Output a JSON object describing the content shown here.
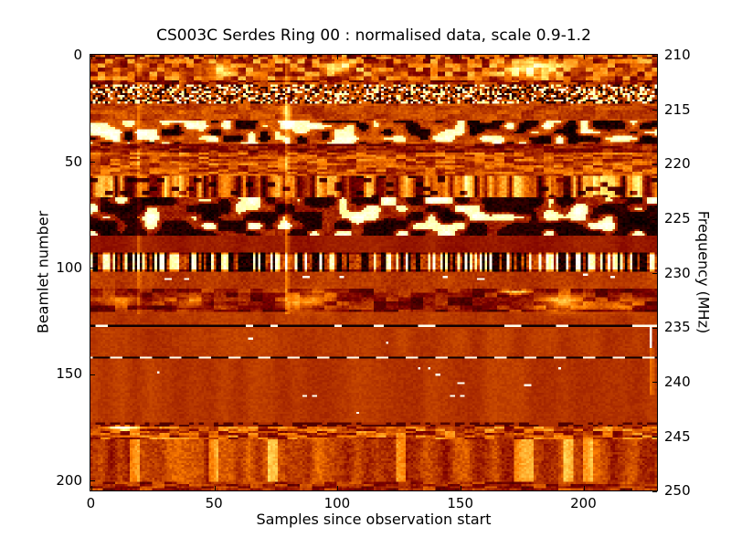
{
  "figure": {
    "background": "#ffffff",
    "frame_color": "#000000",
    "text_color": "#000000"
  },
  "chart_data": {
    "type": "heatmap",
    "title": "CS003C Serdes Ring 00 : normalised data, scale 0.9-1.2",
    "xlabel": "Samples since observation start",
    "ylabel_left": "Beamlet number",
    "ylabel_right": "Frequency (MHz)",
    "scale": [
      0.9,
      1.2
    ],
    "x_range": [
      0,
      230
    ],
    "y_range": [
      0,
      205
    ],
    "freq_range": [
      210,
      250
    ],
    "x_ticks": [
      0,
      50,
      100,
      150,
      200
    ],
    "y_ticks_left": [
      0,
      50,
      100,
      150,
      200
    ],
    "y_ticks_right": [
      210,
      215,
      220,
      225,
      230,
      235,
      240,
      245,
      250
    ],
    "grid": {
      "cols": 230,
      "rows": 205
    },
    "colormap": "afmhot",
    "colormap_stops": [
      "#000000",
      "#8a1e00",
      "#b53a00",
      "#ff8c00",
      "#ffd24d",
      "#ffffff"
    ],
    "legend": "none",
    "bands": [
      {
        "b0": 0,
        "b1": 2,
        "t": "mottle",
        "base": 0.34,
        "amp": 0.25,
        "cw": 2,
        "ch": 1,
        "seed": 11
      },
      {
        "b0": 2,
        "b1": 12,
        "t": "mottle",
        "base": 0.42,
        "amp": 0.2,
        "cw": 3,
        "ch": 2,
        "seed": 12
      },
      {
        "b0": 12,
        "b1": 14,
        "t": "mottle",
        "base": 0.3,
        "amp": 0.15,
        "cw": 3,
        "ch": 1,
        "seed": 13
      },
      {
        "b0": 14,
        "b1": 23,
        "t": "speckle",
        "base": 0.4,
        "pD": 0.3,
        "pB": 0.28,
        "seed": 14
      },
      {
        "b0": 23,
        "b1": 31,
        "t": "mottle",
        "base": 0.38,
        "amp": 0.06,
        "cw": 5,
        "ch": 2,
        "seed": 15
      },
      {
        "b0": 31,
        "b1": 42,
        "t": "blobs",
        "base": 0.38,
        "pL": 0.33,
        "pH": 0.3,
        "cw": 5,
        "ch": 3,
        "seed": 16
      },
      {
        "b0": 42,
        "b1": 46,
        "t": "mottle",
        "base": 0.28,
        "amp": 0.1,
        "cw": 4,
        "ch": 1,
        "seed": 17
      },
      {
        "b0": 46,
        "b1": 57,
        "t": "mottle",
        "base": 0.4,
        "amp": 0.14,
        "cw": 4,
        "ch": 1,
        "seed": 18
      },
      {
        "b0": 57,
        "b1": 67,
        "t": "vstripes",
        "base": 0.4,
        "amp": 0.3,
        "cw": 2,
        "pD": 0.12,
        "pB": 0.15,
        "seed": 19
      },
      {
        "b0": 67,
        "b1": 85,
        "t": "blobs",
        "base": 0.3,
        "pL": 0.45,
        "pH": 0.33,
        "cw": 6,
        "ch": 4,
        "seed": 20
      },
      {
        "b0": 85,
        "b1": 93,
        "t": "flat",
        "base": 0.3,
        "amp": 0.02,
        "seed": 21
      },
      {
        "b0": 93,
        "b1": 102,
        "t": "barcode",
        "base": 0.38,
        "seed": 22
      },
      {
        "b0": 102,
        "b1": 110,
        "t": "flat",
        "base": 0.36,
        "amp": 0.03,
        "seed": 23
      },
      {
        "b0": 110,
        "b1": 121,
        "t": "mottle",
        "base": 0.26,
        "amp": 0.12,
        "cw": 5,
        "ch": 2,
        "seed": 24
      },
      {
        "b0": 121,
        "b1": 127,
        "t": "flat",
        "base": 0.36,
        "amp": 0.02,
        "seed": 25
      },
      {
        "b0": 129,
        "b1": 142,
        "t": "flat",
        "base": 0.36,
        "amp": 0.02,
        "seed": 26
      },
      {
        "b0": 143,
        "b1": 173,
        "t": "flat",
        "base": 0.355,
        "amp": 0.02,
        "seed": 27
      },
      {
        "b0": 173,
        "b1": 175,
        "t": "dotrow",
        "base": 0.34,
        "seed": 28
      },
      {
        "b0": 175,
        "b1": 181,
        "t": "mottle",
        "base": 0.4,
        "amp": 0.18,
        "cw": 4,
        "ch": 1,
        "seed": 29
      },
      {
        "b0": 181,
        "b1": 201,
        "t": "vstripes",
        "base": 0.37,
        "amp": 0.1,
        "cw": 4,
        "pB": 0.1,
        "seed": 30
      },
      {
        "b0": 201,
        "b1": 205,
        "t": "mottle",
        "base": 0.31,
        "amp": 0.13,
        "cw": 5,
        "ch": 1,
        "seed": 31
      }
    ],
    "spots": [
      {
        "c": 52,
        "r": 6,
        "rc": 6,
        "rr": 3,
        "v": 0.25
      },
      {
        "c": 100,
        "r": 5,
        "rc": 7,
        "rr": 3,
        "v": 0.28
      },
      {
        "c": 177,
        "r": 6,
        "rc": 10,
        "rr": 4,
        "v": 0.45
      },
      {
        "c": 79,
        "r": 27,
        "rc": 2,
        "rr": 6,
        "v": 0.22
      },
      {
        "c": 12,
        "r": 115,
        "rc": 6,
        "rr": 3,
        "v": 0.2
      },
      {
        "c": 40,
        "r": 116,
        "rc": 8,
        "rr": 3,
        "v": 0.22
      },
      {
        "c": 88,
        "r": 115,
        "rc": 9,
        "rr": 4,
        "v": 0.34
      },
      {
        "c": 172,
        "r": 111,
        "rc": 5,
        "rr": 1,
        "v": 0.55
      },
      {
        "c": 192,
        "r": 116,
        "rc": 10,
        "rr": 4,
        "v": 0.38
      },
      {
        "c": 215,
        "r": 117,
        "rc": 8,
        "rr": 3,
        "v": 0.22
      },
      {
        "c": 12,
        "r": 175,
        "rc": 8,
        "rr": 1,
        "v": 0.5
      }
    ],
    "vlines": [
      {
        "c": 79,
        "r0": 0,
        "r1": 122,
        "v": 0.15
      },
      {
        "c": 19,
        "r0": 0,
        "r1": 122,
        "v": 0.1
      },
      {
        "c": 36,
        "r0": 0,
        "r1": 67,
        "v": 0.06
      },
      {
        "c": 110,
        "r0": 0,
        "r1": 31,
        "v": 0.06
      },
      {
        "c": 227,
        "r0": 138,
        "r1": 160,
        "v": 0.1
      }
    ],
    "lines": [
      {
        "r": 127,
        "whiteDashes": [
          [
            2,
            7
          ],
          [
            63,
            66
          ],
          [
            73,
            76
          ],
          [
            99,
            102
          ],
          [
            115,
            119
          ],
          [
            133,
            140
          ],
          [
            168,
            175
          ],
          [
            189,
            194
          ],
          [
            220,
            230
          ]
        ]
      },
      {
        "r": 142,
        "period": 12,
        "duty": 0.4,
        "off": 4
      }
    ],
    "cross": {
      "c": 227,
      "r0": 127,
      "r1": 138
    },
    "dots": [
      {
        "c": 30,
        "r": 105,
        "w": 3
      },
      {
        "c": 38,
        "r": 105,
        "w": 2
      },
      {
        "c": 86,
        "r": 104,
        "w": 3
      },
      {
        "c": 101,
        "r": 104,
        "w": 2
      },
      {
        "c": 143,
        "r": 104,
        "w": 2
      },
      {
        "c": 157,
        "r": 105,
        "w": 3
      },
      {
        "c": 200,
        "r": 103,
        "w": 2
      },
      {
        "c": 211,
        "r": 104,
        "w": 2
      },
      {
        "c": 86,
        "r": 160,
        "w": 2
      },
      {
        "c": 90,
        "r": 160,
        "w": 2
      },
      {
        "c": 146,
        "r": 160,
        "w": 2
      },
      {
        "c": 150,
        "r": 160,
        "w": 2
      },
      {
        "c": 176,
        "r": 155,
        "w": 3
      },
      {
        "c": 64,
        "r": 133,
        "w": 2
      },
      {
        "c": 120,
        "r": 135,
        "w": 1
      },
      {
        "c": 140,
        "r": 150,
        "w": 2
      },
      {
        "c": 133,
        "r": 147,
        "w": 1
      },
      {
        "c": 137,
        "r": 147,
        "w": 1
      },
      {
        "c": 149,
        "r": 154,
        "w": 3
      },
      {
        "c": 190,
        "r": 147,
        "w": 1
      },
      {
        "c": 27,
        "r": 149,
        "w": 1
      },
      {
        "c": 108,
        "r": 168,
        "w": 1
      }
    ]
  }
}
